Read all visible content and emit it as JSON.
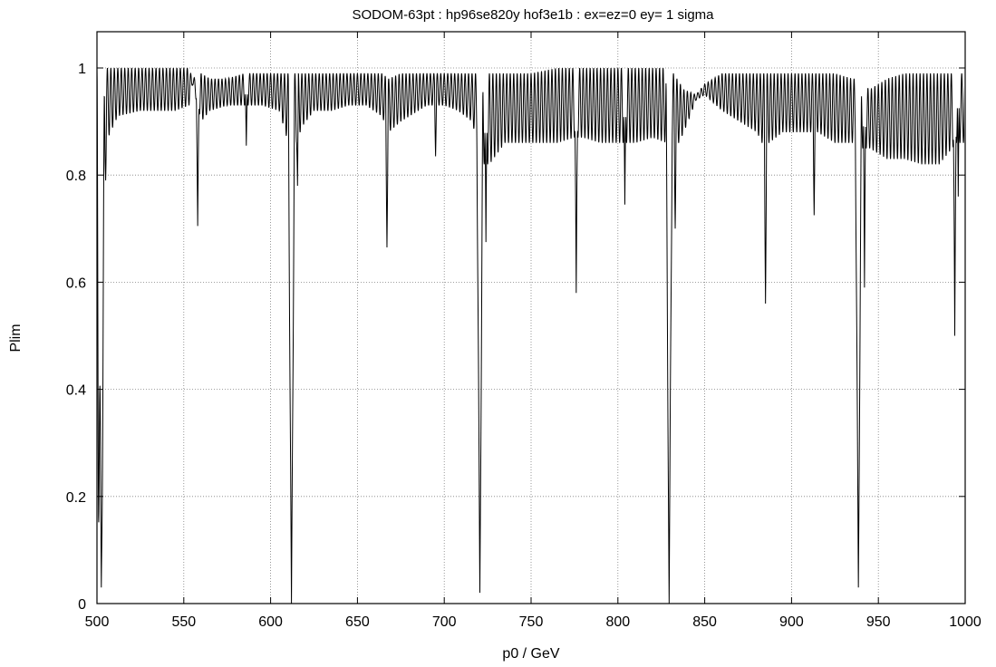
{
  "chart_data": {
    "type": "line",
    "title": "SODOM-63pt : hp96se820y hof3e1b : ex=ez=0 ey= 1 sigma",
    "xlabel": "p0 / GeV",
    "ylabel": "Plim",
    "xlim": [
      500,
      1000
    ],
    "ylim": [
      0,
      1.05
    ],
    "xticks": [
      "500",
      "550",
      "600",
      "650",
      "700",
      "750",
      "800",
      "850",
      "900",
      "950",
      "1000"
    ],
    "yticks": [
      "0",
      "0.2",
      "0.4",
      "0.6",
      "0.8",
      "1"
    ],
    "grid": true,
    "line_color": "#000000",
    "grid_color": "#808080",
    "oscillation_period_gev": 2.0,
    "baseline_envelope": {
      "x": [
        500,
        505,
        512,
        525,
        535,
        545,
        553,
        555,
        560,
        565,
        575,
        585,
        595,
        605,
        611,
        614,
        618,
        625,
        635,
        645,
        655,
        664,
        668,
        675,
        690,
        700,
        708,
        716,
        722,
        726,
        735,
        750,
        765,
        775,
        780,
        790,
        800,
        810,
        820,
        828,
        832,
        838,
        845,
        850,
        860,
        870,
        880,
        883,
        887,
        895,
        905,
        915,
        925,
        935,
        937,
        941,
        945,
        955,
        965,
        975,
        985,
        995,
        1000
      ],
      "lower": [
        0.0,
        0.86,
        0.91,
        0.92,
        0.92,
        0.92,
        0.93,
        0.97,
        0.9,
        0.92,
        0.93,
        0.93,
        0.93,
        0.92,
        0.85,
        0.85,
        0.89,
        0.92,
        0.92,
        0.93,
        0.93,
        0.91,
        0.88,
        0.9,
        0.93,
        0.93,
        0.92,
        0.9,
        0.82,
        0.82,
        0.86,
        0.86,
        0.86,
        0.87,
        0.87,
        0.86,
        0.86,
        0.86,
        0.87,
        0.86,
        0.84,
        0.88,
        0.94,
        0.95,
        0.92,
        0.9,
        0.88,
        0.86,
        0.86,
        0.88,
        0.88,
        0.88,
        0.86,
        0.86,
        0.86,
        0.85,
        0.85,
        0.83,
        0.83,
        0.82,
        0.82,
        0.86,
        0.86
      ],
      "upper": [
        1.0,
        1.0,
        1.0,
        1.0,
        1.0,
        1.0,
        1.0,
        0.98,
        0.99,
        0.98,
        0.98,
        0.99,
        0.99,
        0.99,
        0.99,
        0.99,
        0.99,
        0.99,
        0.99,
        0.99,
        0.99,
        0.99,
        0.98,
        0.99,
        0.99,
        0.99,
        0.99,
        0.99,
        0.99,
        0.99,
        0.99,
        0.99,
        1.0,
        1.0,
        1.0,
        1.0,
        1.0,
        1.0,
        1.0,
        1.0,
        0.99,
        0.96,
        0.95,
        0.97,
        0.99,
        0.99,
        0.99,
        0.99,
        0.99,
        0.99,
        0.99,
        0.99,
        0.99,
        0.98,
        0.98,
        0.97,
        0.96,
        0.98,
        0.99,
        0.99,
        0.99,
        0.99,
        0.99
      ]
    },
    "dips": [
      {
        "x": 502.5,
        "y": 0.03,
        "width": 3.5
      },
      {
        "x": 505,
        "y": 0.79,
        "width": 1
      },
      {
        "x": 558,
        "y": 0.705,
        "width": 1.5
      },
      {
        "x": 586,
        "y": 0.855,
        "width": 1.2
      },
      {
        "x": 612,
        "y": 0.0,
        "width": 3.5
      },
      {
        "x": 615.5,
        "y": 0.78,
        "width": 1
      },
      {
        "x": 667,
        "y": 0.665,
        "width": 1.5
      },
      {
        "x": 695,
        "y": 0.835,
        "width": 1.2
      },
      {
        "x": 720.5,
        "y": 0.02,
        "width": 3.5
      },
      {
        "x": 724,
        "y": 0.675,
        "width": 1.2
      },
      {
        "x": 776,
        "y": 0.58,
        "width": 1.5
      },
      {
        "x": 804,
        "y": 0.745,
        "width": 1.2
      },
      {
        "x": 829.5,
        "y": 0.0,
        "width": 3.5
      },
      {
        "x": 833,
        "y": 0.7,
        "width": 1.2
      },
      {
        "x": 885,
        "y": 0.56,
        "width": 1.5
      },
      {
        "x": 913,
        "y": 0.725,
        "width": 1.2
      },
      {
        "x": 938.5,
        "y": 0.03,
        "width": 3.5
      },
      {
        "x": 942,
        "y": 0.59,
        "width": 1.2
      },
      {
        "x": 994,
        "y": 0.5,
        "width": 1.5
      },
      {
        "x": 996,
        "y": 0.76,
        "width": 1
      }
    ]
  }
}
